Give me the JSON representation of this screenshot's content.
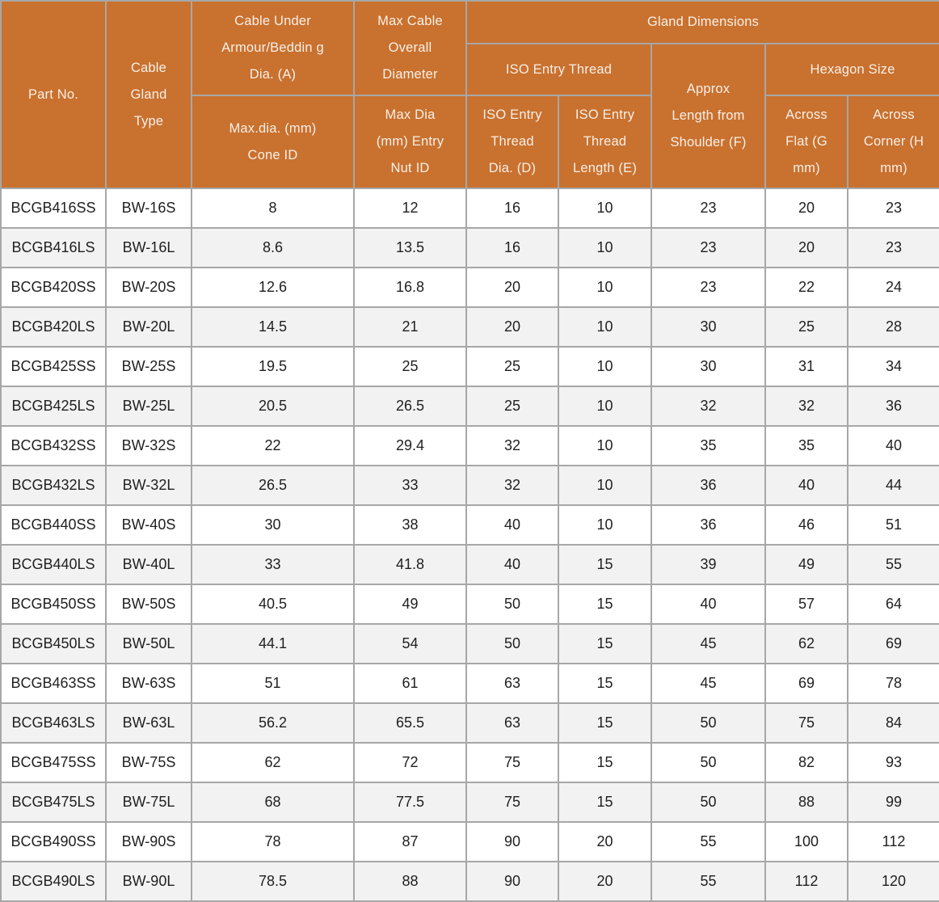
{
  "theme": {
    "header_bg": "#C9712F",
    "header_text": "#F8F0E7",
    "border": "#A7A7A7",
    "row_bg": "#FFFFFF",
    "row_alt_bg": "#F2F2F2",
    "cell_text": "#1F1F1F"
  },
  "table": {
    "headers": {
      "part_no": "Part No.",
      "cable_gland_type": "Cable\nGland\nType",
      "cable_under_armour": "Cable Under\nArmour/Beddin g\nDia. (A)",
      "max_cable_overall": "Max Cable\nOverall\nDiameter",
      "gland_dimensions": "Gland Dimensions",
      "iso_entry_thread": "ISO Entry Thread",
      "approx_length": "Approx\nLength from\nShoulder (F)",
      "hexagon_size": "Hexagon Size",
      "max_dia_cone_id": "Max.dia. (mm)\nCone ID",
      "max_dia_entry_nut_id": "Max Dia\n(mm) Entry\nNut ID",
      "iso_thread_dia": "ISO Entry\nThread\nDia. (D)",
      "iso_thread_length": "ISO Entry\nThread\nLength (E)",
      "across_flat": "Across\nFlat (G\nmm)",
      "across_corner": "Across\nCorner (H\nmm)"
    }
  },
  "chart_data": {
    "type": "table",
    "column_groups": [
      {
        "label": "Part No."
      },
      {
        "label": "Cable Gland Type"
      },
      {
        "label": "Cable Under Armour/Beddin g Dia. (A)",
        "children": [
          "Max.dia. (mm) Cone ID"
        ]
      },
      {
        "label": "Max Cable Overall Diameter",
        "children": [
          "Max Dia (mm) Entry Nut ID"
        ]
      },
      {
        "label": "Gland Dimensions",
        "children": [
          {
            "label": "ISO Entry Thread",
            "children": [
              "ISO Entry Thread Dia. (D)",
              "ISO Entry Thread Length (E)"
            ]
          },
          {
            "label": "Approx Length from Shoulder (F)"
          },
          {
            "label": "Hexagon Size",
            "children": [
              "Across Flat (G mm)",
              "Across Corner (H mm)"
            ]
          }
        ]
      }
    ],
    "columns": [
      "Part No.",
      "Cable Gland Type",
      "Max.dia. (mm) Cone ID",
      "Max Dia (mm) Entry Nut ID",
      "ISO Entry Thread Dia. (D)",
      "ISO Entry Thread Length (E)",
      "Approx Length from Shoulder (F)",
      "Across Flat (G mm)",
      "Across Corner (H mm)"
    ],
    "rows": [
      [
        "BCGB416SS",
        "BW-16S",
        "8",
        "12",
        "16",
        "10",
        "23",
        "20",
        "23"
      ],
      [
        "BCGB416LS",
        "BW-16L",
        "8.6",
        "13.5",
        "16",
        "10",
        "23",
        "20",
        "23"
      ],
      [
        "BCGB420SS",
        "BW-20S",
        "12.6",
        "16.8",
        "20",
        "10",
        "23",
        "22",
        "24"
      ],
      [
        "BCGB420LS",
        "BW-20L",
        "14.5",
        "21",
        "20",
        "10",
        "30",
        "25",
        "28"
      ],
      [
        "BCGB425SS",
        "BW-25S",
        "19.5",
        "25",
        "25",
        "10",
        "30",
        "31",
        "34"
      ],
      [
        "BCGB425LS",
        "BW-25L",
        "20.5",
        "26.5",
        "25",
        "10",
        "32",
        "32",
        "36"
      ],
      [
        "BCGB432SS",
        "BW-32S",
        "22",
        "29.4",
        "32",
        "10",
        "35",
        "35",
        "40"
      ],
      [
        "BCGB432LS",
        "BW-32L",
        "26.5",
        "33",
        "32",
        "10",
        "36",
        "40",
        "44"
      ],
      [
        "BCGB440SS",
        "BW-40S",
        "30",
        "38",
        "40",
        "10",
        "36",
        "46",
        "51"
      ],
      [
        "BCGB440LS",
        "BW-40L",
        "33",
        "41.8",
        "40",
        "15",
        "39",
        "49",
        "55"
      ],
      [
        "BCGB450SS",
        "BW-50S",
        "40.5",
        "49",
        "50",
        "15",
        "40",
        "57",
        "64"
      ],
      [
        "BCGB450LS",
        "BW-50L",
        "44.1",
        "54",
        "50",
        "15",
        "45",
        "62",
        "69"
      ],
      [
        "BCGB463SS",
        "BW-63S",
        "51",
        "61",
        "63",
        "15",
        "45",
        "69",
        "78"
      ],
      [
        "BCGB463LS",
        "BW-63L",
        "56.2",
        "65.5",
        "63",
        "15",
        "50",
        "75",
        "84"
      ],
      [
        "BCGB475SS",
        "BW-75S",
        "62",
        "72",
        "75",
        "15",
        "50",
        "82",
        "93"
      ],
      [
        "BCGB475LS",
        "BW-75L",
        "68",
        "77.5",
        "75",
        "15",
        "50",
        "88",
        "99"
      ],
      [
        "BCGB490SS",
        "BW-90S",
        "78",
        "87",
        "90",
        "20",
        "55",
        "100",
        "112"
      ],
      [
        "BCGB490LS",
        "BW-90L",
        "78.5",
        "88",
        "90",
        "20",
        "55",
        "112",
        "120"
      ]
    ]
  }
}
